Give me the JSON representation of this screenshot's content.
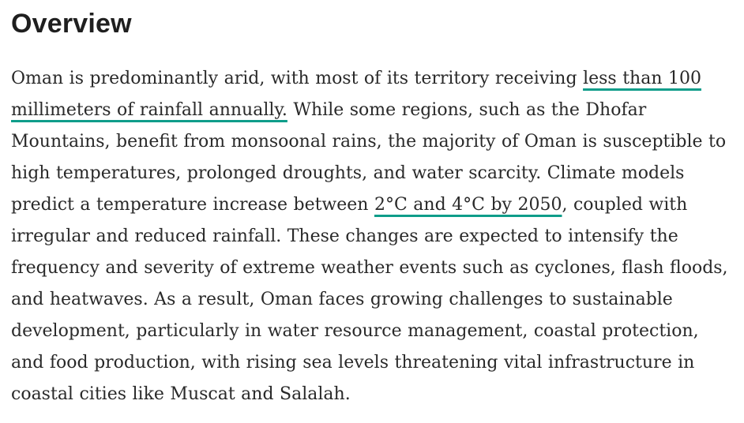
{
  "document": {
    "heading": "Overview",
    "paragraph_segments": [
      {
        "type": "text",
        "content": "Oman is predominantly arid, with most of its territory receiving "
      },
      {
        "type": "link",
        "content": "less than 100 millimeters of rainfall annually."
      },
      {
        "type": "text",
        "content": " While some regions, such as the Dhofar Mountains, benefit from monsoonal rains, the majority of Oman is susceptible to high temperatures, prolonged droughts, and water scarcity. Climate models predict a temperature increase between "
      },
      {
        "type": "link",
        "content": "2°C and 4°C by 2050"
      },
      {
        "type": "text",
        "content": ", coupled with irregular and reduced rainfall. These changes are expected to intensify the frequency and severity of extreme weather events such as cyclones, flash floods, and heatwaves. As a result, Oman faces growing challenges to sustainable development, particularly in water resource management, coastal protection, and food production, with rising sea levels threatening vital infrastructure in coastal cities like Muscat and Salalah."
      }
    ],
    "colors": {
      "background": "#ffffff",
      "heading_text": "#1f1f1f",
      "body_text": "#292929",
      "link_underline": "#0f9d8a"
    }
  }
}
